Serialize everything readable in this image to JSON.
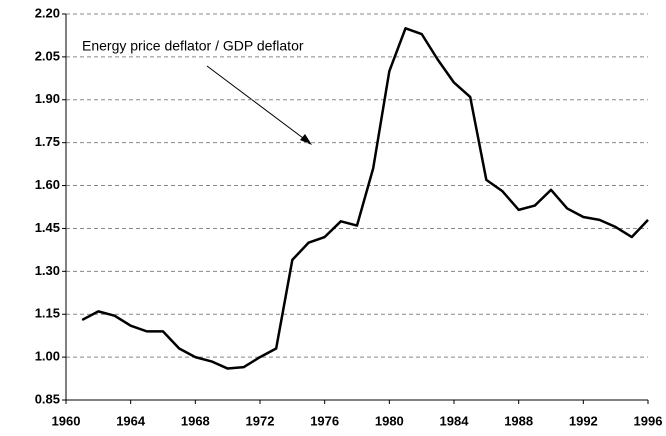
{
  "chart_data": {
    "type": "line",
    "annotation": "Energy price deflator / GDP deflator",
    "x": [
      1961,
      1962,
      1963,
      1964,
      1965,
      1966,
      1967,
      1968,
      1969,
      1970,
      1971,
      1972,
      1973,
      1974,
      1975,
      1976,
      1977,
      1978,
      1979,
      1980,
      1981,
      1982,
      1983,
      1984,
      1985,
      1986,
      1987,
      1988,
      1989,
      1990,
      1991,
      1992,
      1993,
      1994,
      1995,
      1996
    ],
    "series": [
      {
        "color": "#000000",
        "values": [
          1.13,
          1.16,
          1.145,
          1.11,
          1.09,
          1.09,
          1.03,
          1.0,
          0.985,
          0.96,
          0.965,
          1.0,
          1.03,
          1.34,
          1.4,
          1.42,
          1.475,
          1.46,
          1.66,
          2.0,
          2.15,
          2.13,
          2.04,
          1.96,
          1.91,
          1.62,
          1.58,
          1.515,
          1.53,
          1.585,
          1.52,
          1.49,
          1.48,
          1.455,
          1.42,
          1.48
        ]
      }
    ],
    "xlim": [
      1960,
      1996
    ],
    "xticks": [
      1960,
      1964,
      1968,
      1972,
      1976,
      1980,
      1984,
      1988,
      1992,
      1996
    ],
    "ylim": [
      0.85,
      2.2
    ],
    "yticks": [
      {
        "value": 0.85,
        "label": "0.85"
      },
      {
        "value": 1.0,
        "label": "1.00"
      },
      {
        "value": 1.15,
        "label": "1.15"
      },
      {
        "value": 1.3,
        "label": "1.30"
      },
      {
        "value": 1.45,
        "label": "1.45"
      },
      {
        "value": 1.6,
        "label": "1.60"
      },
      {
        "value": 1.75,
        "label": "1.75"
      },
      {
        "value": 1.9,
        "label": "1.90"
      },
      {
        "value": 2.05,
        "label": "2.05"
      },
      {
        "value": 2.2,
        "label": "2.20"
      }
    ],
    "grid": true
  }
}
